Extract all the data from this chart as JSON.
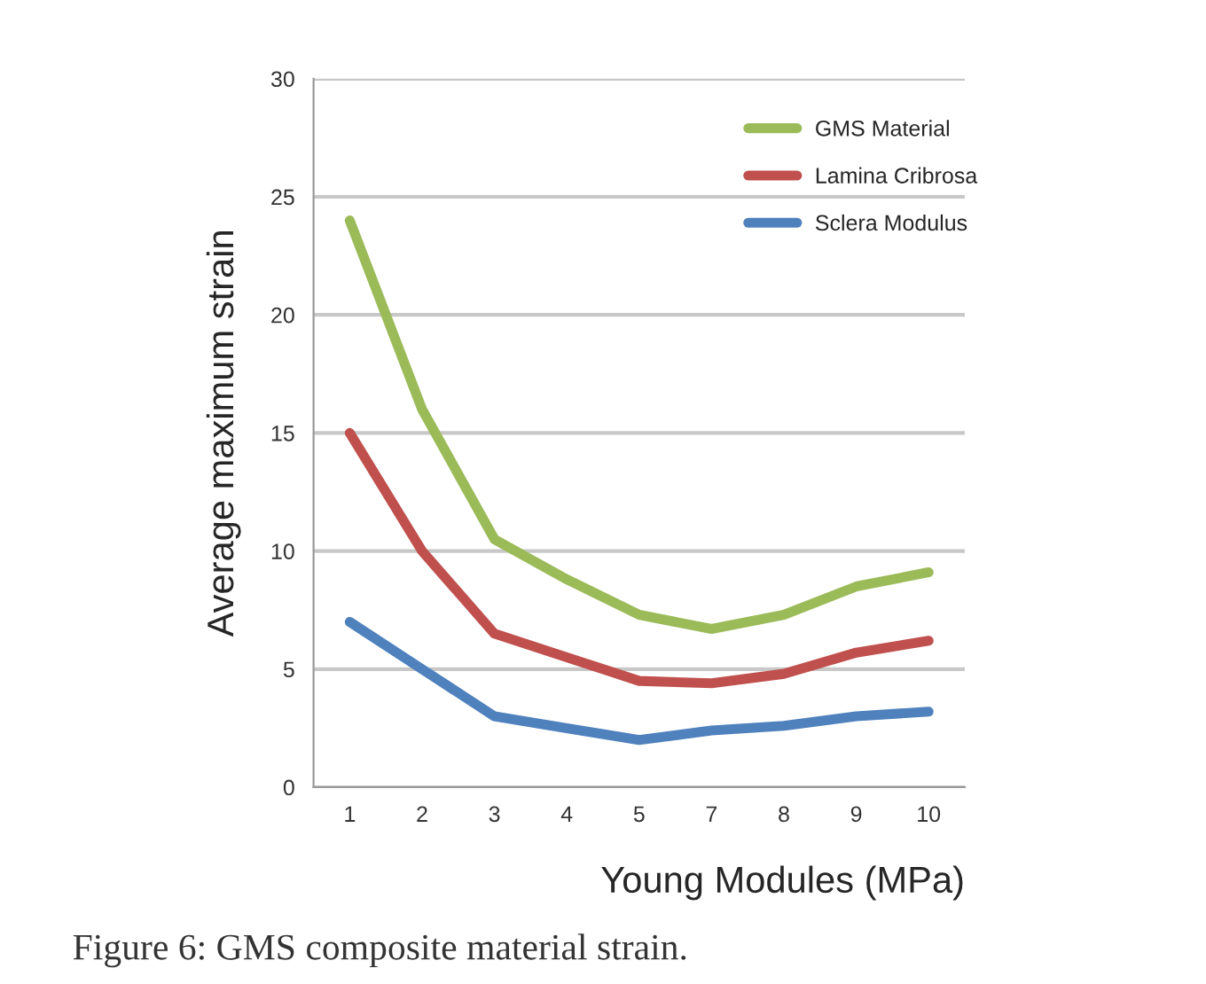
{
  "chart_data": {
    "type": "line",
    "xlabel": "Young Modules (MPa)",
    "ylabel": "Average maximum strain",
    "categories": [
      "1",
      "2",
      "3",
      "4",
      "5",
      "7",
      "8",
      "9",
      "10"
    ],
    "series": [
      {
        "name": "GMS Material",
        "color": "#9bbb59",
        "values": [
          24,
          16,
          10.5,
          8.8,
          7.3,
          6.7,
          7.3,
          8.5,
          9.1
        ]
      },
      {
        "name": "Lamina Cribrosa",
        "color": "#c0504d",
        "values": [
          15,
          10,
          6.5,
          5.5,
          4.5,
          4.4,
          4.8,
          5.7,
          6.2
        ]
      },
      {
        "name": "Sclera Modulus",
        "color": "#4f81bd",
        "values": [
          7,
          5,
          3,
          2.5,
          2,
          2.4,
          2.6,
          3,
          3.2
        ]
      }
    ],
    "ylim": [
      0,
      30
    ],
    "yticks": [
      0,
      5,
      10,
      15,
      20,
      25,
      30
    ],
    "grid": "y",
    "legend": "top right",
    "marker": "none",
    "line_style": "solid",
    "annotations": [
      "Figure 6: GMS composite material strain."
    ]
  }
}
